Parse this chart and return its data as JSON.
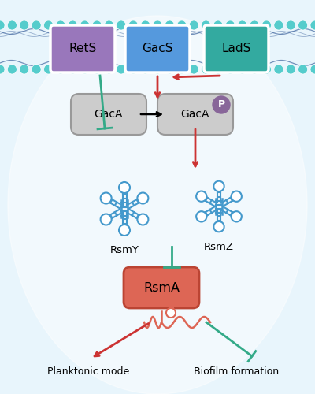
{
  "bg_color": "#cce8f4",
  "bg_color2": "#e8f5fc",
  "membrane_color": "#55b8d0",
  "lipid_head_color": "#55cccc",
  "RetS_color": "#9977bb",
  "GacS_color": "#5599dd",
  "LadS_color": "#33aaa0",
  "GacA_color": "#cccccc",
  "GacA_border": "#999999",
  "RsmA_color": "#dd6655",
  "RsmA_border": "#bb4433",
  "sRNA_color": "#4499cc",
  "arrow_red": "#cc3333",
  "arrow_teal": "#33aa88",
  "P_color": "#886699",
  "labels": {
    "RetS": "RetS",
    "GacS": "GacS",
    "LadS": "LadS",
    "GacA": "GacA",
    "GacAP": "GacA",
    "P": "P",
    "RsmY": "RsmY",
    "RsmZ": "RsmZ",
    "RsmA": "RsmA",
    "Planktonic": "Planktonic mode",
    "Biofilm": "Biofilm formation"
  }
}
